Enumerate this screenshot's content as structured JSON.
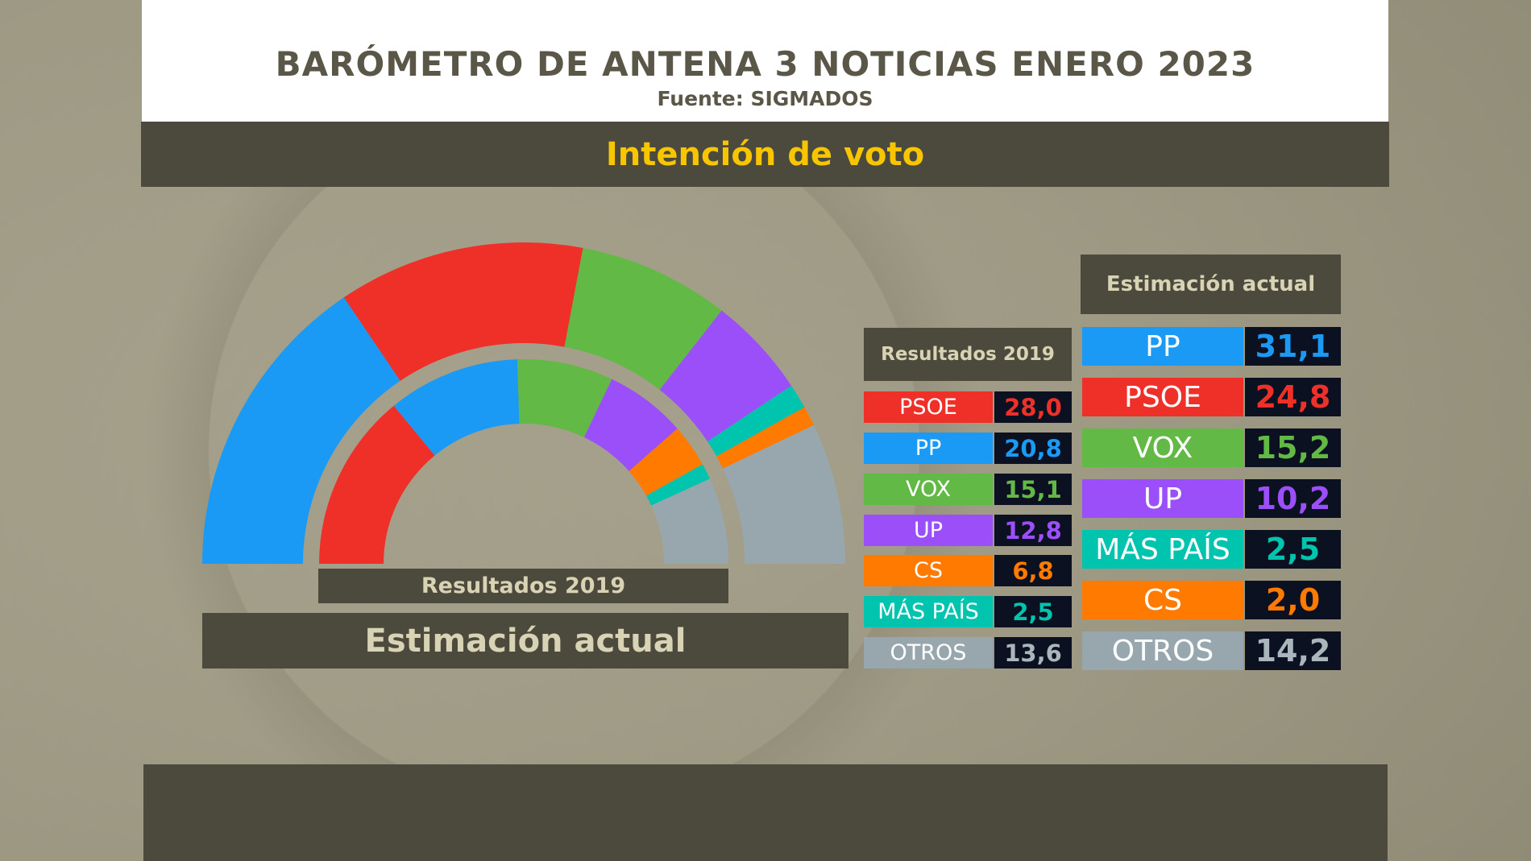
{
  "header": {
    "title": "BARÓMETRO DE ANTENA 3 NOTICIAS ENERO 2023",
    "subtitle": "Fuente: SIGMADOS"
  },
  "section_title": "Intención de voto",
  "colors": {
    "PP": "#1a9af5",
    "PSOE": "#ef3029",
    "VOX": "#62b946",
    "UP": "#9b4ff8",
    "CS": "#ff7a00",
    "MÁS PAÍS": "#00c4ad",
    "OTROS": "#98a7ad",
    "accent": "#f7c600"
  },
  "chart_data": {
    "type": "pie",
    "shape": "hemicycle",
    "labels": {
      "inner": "Resultados 2019",
      "outer": "Estimación actual"
    },
    "series": [
      {
        "name": "Estimación actual",
        "ring": "outer",
        "categories": [
          "PP",
          "PSOE",
          "VOX",
          "UP",
          "MÁS PAÍS",
          "CS",
          "OTROS"
        ],
        "values": [
          31.1,
          24.8,
          15.2,
          10.2,
          2.5,
          2.0,
          14.2
        ]
      },
      {
        "name": "Resultados 2019",
        "ring": "inner",
        "categories": [
          "PSOE",
          "PP",
          "VOX",
          "UP",
          "CS",
          "MÁS PAÍS",
          "OTROS"
        ],
        "values": [
          28.0,
          20.8,
          15.1,
          12.8,
          6.8,
          2.5,
          13.6
        ]
      }
    ]
  },
  "table_2019": {
    "header": "Resultados 2019",
    "rows": [
      {
        "party": "PSOE",
        "value": "28,0"
      },
      {
        "party": "PP",
        "value": "20,8"
      },
      {
        "party": "VOX",
        "value": "15,1"
      },
      {
        "party": "UP",
        "value": "12,8"
      },
      {
        "party": "CS",
        "value": "6,8"
      },
      {
        "party": "MÁS PAÍS",
        "value": "2,5"
      },
      {
        "party": "OTROS",
        "value": "13,6"
      }
    ]
  },
  "table_now": {
    "header": "Estimación actual",
    "rows": [
      {
        "party": "PP",
        "value": "31,1"
      },
      {
        "party": "PSOE",
        "value": "24,8"
      },
      {
        "party": "VOX",
        "value": "15,2"
      },
      {
        "party": "UP",
        "value": "10,2"
      },
      {
        "party": "MÁS PAÍS",
        "value": "2,5"
      },
      {
        "party": "CS",
        "value": "2,0"
      },
      {
        "party": "OTROS",
        "value": "14,2"
      }
    ]
  }
}
